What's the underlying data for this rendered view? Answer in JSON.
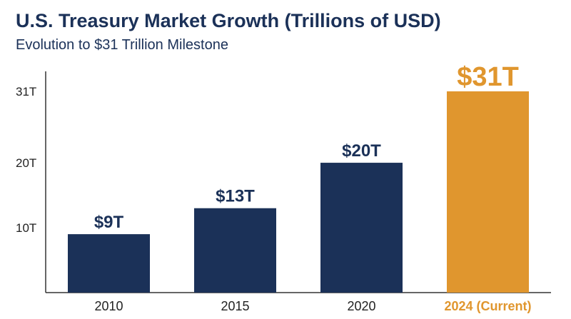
{
  "chart_data": {
    "type": "bar",
    "title": "U.S. Treasury Market Growth (Trillions of USD)",
    "subtitle": "Evolution to $31 Trillion Milestone",
    "xlabel": "",
    "ylabel": "",
    "categories": [
      "2010",
      "2015",
      "2020",
      "2024 (Current)"
    ],
    "values": [
      9,
      13,
      20,
      31
    ],
    "data_labels": [
      "$9T",
      "$13T",
      "$20T",
      "$31T"
    ],
    "highlight_index": 3,
    "yticks": [
      10,
      20,
      31
    ],
    "ytick_labels": [
      "10T",
      "20T",
      "31T"
    ],
    "ylim": [
      0,
      31
    ],
    "grid": false,
    "colors": {
      "bar": "#1b3158",
      "highlight": "#e0962e",
      "axis": "#333333",
      "text": "#222222",
      "title": "#1b3158"
    }
  }
}
